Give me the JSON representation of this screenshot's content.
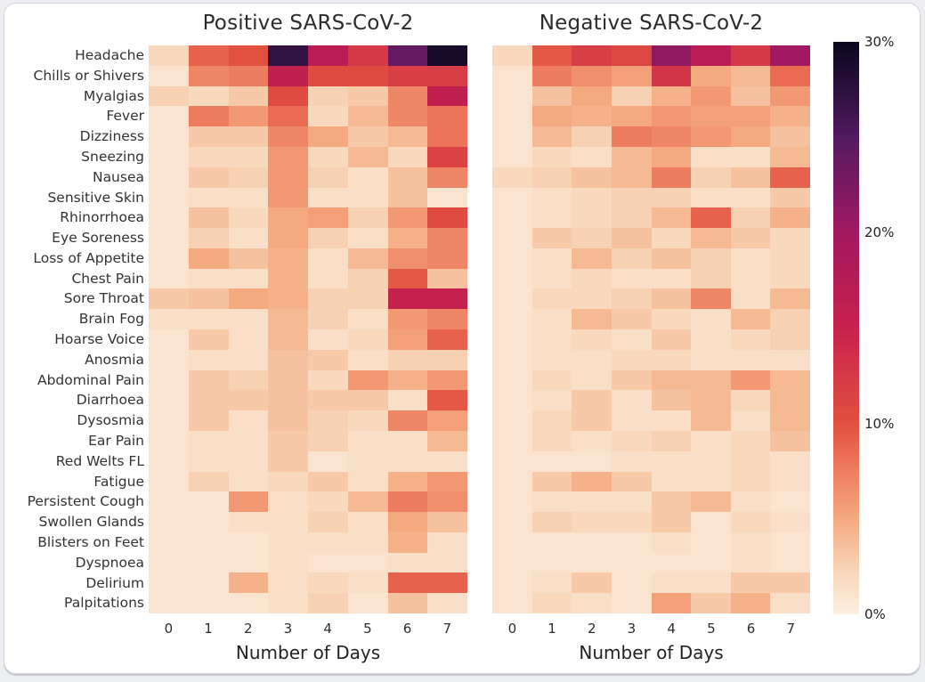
{
  "page": {
    "background": "#ffffff"
  },
  "chart_data": [
    {
      "type": "heatmap",
      "title": "Positive SARS-CoV-2",
      "xlabel": "Number of Days",
      "x_ticks": [
        "0",
        "1",
        "2",
        "3",
        "4",
        "5",
        "6",
        "7"
      ],
      "rows": [
        "Headache",
        "Chills or Shivers",
        "Myalgias",
        "Fever",
        "Dizziness",
        "Sneezing",
        "Nausea",
        "Sensitive Skin",
        "Rhinorrhoea",
        "Eye Soreness",
        "Loss of Appetite",
        "Chest Pain",
        "Sore Throat",
        "Brain Fog",
        "Hoarse Voice",
        "Anosmia",
        "Abdominal Pain",
        "Diarrhoea",
        "Dysosmia",
        "Ear Pain",
        "Red Welts FL",
        "Fatigue",
        "Persistent Cough",
        "Swollen Glands",
        "Blisters on Feet",
        "Dyspnoea",
        "Delirium",
        "Palpitations"
      ],
      "values_percent": [
        [
          2,
          9,
          10,
          27,
          17,
          12.5,
          24,
          29
        ],
        [
          1,
          7,
          7.5,
          16,
          10.5,
          10.5,
          12,
          12
        ],
        [
          2.5,
          2,
          3,
          10.5,
          2.5,
          3,
          7,
          16
        ],
        [
          1,
          7.5,
          6,
          8.5,
          2,
          4,
          7,
          8
        ],
        [
          1,
          3,
          3,
          7,
          5,
          3,
          4,
          8
        ],
        [
          1,
          2,
          2,
          6,
          2,
          4,
          2,
          11.5
        ],
        [
          1,
          3,
          2.5,
          6,
          2.5,
          1.5,
          3.5,
          7
        ],
        [
          1,
          1.5,
          1.5,
          6,
          1.5,
          1.5,
          3.5,
          1
        ],
        [
          1,
          3.5,
          2,
          5,
          5.5,
          2.5,
          6,
          10.5
        ],
        [
          1,
          2.5,
          1.5,
          5,
          2.5,
          1.5,
          4.5,
          7
        ],
        [
          1,
          5,
          3.5,
          4.5,
          1.5,
          4,
          6.5,
          7
        ],
        [
          1,
          1.5,
          1.5,
          4.5,
          1.5,
          2.5,
          9.5,
          3.5
        ],
        [
          3,
          3.5,
          5,
          4.5,
          2.5,
          2.5,
          15.5,
          15.5
        ],
        [
          1.5,
          1.5,
          1.5,
          4,
          2.5,
          1.5,
          6,
          7
        ],
        [
          1,
          3,
          1.5,
          4,
          1.5,
          2,
          5.5,
          9
        ],
        [
          1,
          1.5,
          1.5,
          3.5,
          3,
          1.5,
          2.5,
          2.5
        ],
        [
          1,
          3,
          2.5,
          3.5,
          2,
          6,
          4.5,
          6
        ],
        [
          1,
          3,
          3,
          3.5,
          3,
          3,
          1.5,
          9.5
        ],
        [
          1,
          3,
          1.5,
          3.5,
          2.5,
          2,
          7,
          5.5
        ],
        [
          1,
          1.5,
          1.5,
          3,
          2.5,
          1.5,
          1.5,
          4
        ],
        [
          1,
          1.5,
          1.5,
          3,
          1,
          1.5,
          1.5,
          1.5
        ],
        [
          1,
          2.5,
          1.5,
          2,
          3,
          1.5,
          4.5,
          6
        ],
        [
          1,
          1,
          6,
          1.5,
          2,
          4,
          7.5,
          6.5
        ],
        [
          1,
          1,
          1.5,
          1.5,
          2.5,
          1.5,
          5,
          3.5
        ],
        [
          1,
          1,
          1,
          1.5,
          1.5,
          1.5,
          4.5,
          1.5
        ],
        [
          1,
          1,
          1,
          1.5,
          1,
          1,
          1.5,
          1.5
        ],
        [
          1,
          1,
          4.5,
          1.5,
          2,
          1.5,
          9,
          9
        ],
        [
          1,
          1,
          1,
          1.5,
          2.5,
          1,
          3.5,
          1.5
        ]
      ]
    },
    {
      "type": "heatmap",
      "title": "Negative SARS-CoV-2",
      "xlabel": "Number of Days",
      "x_ticks": [
        "0",
        "1",
        "2",
        "3",
        "4",
        "5",
        "6",
        "7"
      ],
      "rows": [
        "Headache",
        "Chills or Shivers",
        "Myalgias",
        "Fever",
        "Dizziness",
        "Sneezing",
        "Nausea",
        "Sensitive Skin",
        "Rhinorrhoea",
        "Eye Soreness",
        "Loss of Appetite",
        "Chest Pain",
        "Sore Throat",
        "Brain Fog",
        "Hoarse Voice",
        "Anosmia",
        "Abdominal Pain",
        "Diarrhoea",
        "Dysosmia",
        "Ear Pain",
        "Red Welts FL",
        "Fatigue",
        "Persistent Cough",
        "Swollen Glands",
        "Blisters on Feet",
        "Dyspnoea",
        "Delirium",
        "Palpitations"
      ],
      "values_percent": [
        [
          2,
          9.5,
          12,
          11,
          21,
          17,
          12.5,
          20
        ],
        [
          1,
          7.5,
          6.5,
          5.5,
          13,
          5,
          4,
          8.5
        ],
        [
          1,
          3.5,
          5,
          2.5,
          4.5,
          6,
          3.5,
          6
        ],
        [
          1,
          5,
          4.5,
          5,
          6,
          5.5,
          5.5,
          4.5
        ],
        [
          1,
          4,
          2.5,
          7.5,
          7,
          6,
          5,
          3.5
        ],
        [
          1,
          2,
          1.5,
          4,
          5,
          1.5,
          1.5,
          4
        ],
        [
          2,
          2.5,
          3.5,
          4,
          7.5,
          2.5,
          3.5,
          9
        ],
        [
          1,
          1.5,
          2,
          2.5,
          2.5,
          1.5,
          1.5,
          3
        ],
        [
          1,
          1.5,
          2,
          2.5,
          4,
          9,
          2.5,
          4.5
        ],
        [
          1,
          3,
          2.5,
          3.5,
          2,
          4,
          3,
          2
        ],
        [
          1,
          1.5,
          4,
          2.5,
          3.5,
          2.5,
          1.5,
          2
        ],
        [
          1,
          1.5,
          2,
          1.5,
          1.5,
          2.5,
          1.5,
          2
        ],
        [
          1,
          2,
          2,
          2.5,
          3.5,
          7,
          1.5,
          4
        ],
        [
          1,
          1.5,
          4,
          3,
          2,
          1.5,
          4,
          2.5
        ],
        [
          1,
          1.5,
          2,
          1.5,
          3,
          1.5,
          2,
          2.5
        ],
        [
          1,
          1.5,
          1.5,
          2,
          2,
          1.5,
          1.5,
          1.5
        ],
        [
          1,
          2,
          1.5,
          3,
          4,
          4,
          6,
          4
        ],
        [
          1,
          1.5,
          3,
          1.5,
          3.5,
          4,
          2,
          4
        ],
        [
          1,
          2,
          3,
          1.5,
          1.5,
          4,
          1.5,
          4
        ],
        [
          1,
          2,
          1.5,
          2,
          2.5,
          1.5,
          2,
          3.5
        ],
        [
          1,
          1,
          1,
          1.5,
          1.5,
          1.5,
          2,
          1.5
        ],
        [
          1,
          3,
          4.5,
          3,
          1.5,
          1.5,
          2,
          1.5
        ],
        [
          1,
          1.5,
          1.5,
          1.5,
          3,
          4,
          1.5,
          1
        ],
        [
          1,
          2.5,
          2,
          2,
          3,
          1,
          2,
          1.5
        ],
        [
          1,
          1,
          1,
          1,
          1.5,
          1,
          1.5,
          1
        ],
        [
          1,
          1,
          1,
          1,
          1,
          1,
          1.5,
          1
        ],
        [
          1,
          1.5,
          3,
          1,
          1.5,
          1.5,
          3,
          3
        ],
        [
          1,
          2,
          1.5,
          1,
          5.5,
          3,
          4.5,
          1.5
        ]
      ]
    }
  ],
  "colorbar": {
    "tick_labels": [
      {
        "label": "30%",
        "value": 30
      },
      {
        "label": "20%",
        "value": 20
      },
      {
        "label": "10%",
        "value": 10
      },
      {
        "label": "0%",
        "value": 0
      }
    ],
    "min_percent": 0,
    "max_percent": 30,
    "colormap_name": "rocket_r",
    "stops": [
      {
        "u": 0.0,
        "color": "#FCEFE1"
      },
      {
        "u": 0.067,
        "color": "#F8D9BE"
      },
      {
        "u": 0.167,
        "color": "#F4A97E"
      },
      {
        "u": 0.25,
        "color": "#EE7D5F"
      },
      {
        "u": 0.333,
        "color": "#E2503F"
      },
      {
        "u": 0.417,
        "color": "#D53947"
      },
      {
        "u": 0.5,
        "color": "#C8224E"
      },
      {
        "u": 0.583,
        "color": "#B51C54"
      },
      {
        "u": 0.667,
        "color": "#A11960"
      },
      {
        "u": 0.75,
        "color": "#7A1A61"
      },
      {
        "u": 0.833,
        "color": "#531A60"
      },
      {
        "u": 0.9,
        "color": "#321243"
      },
      {
        "u": 1.0,
        "color": "#0B081E"
      }
    ]
  }
}
